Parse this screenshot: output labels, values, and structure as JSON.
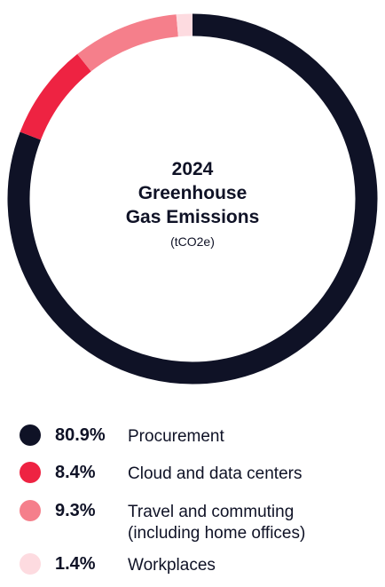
{
  "chart_data": {
    "type": "pie",
    "donut": true,
    "title": [
      "2024",
      "Greenhouse",
      "Gas Emissions"
    ],
    "unit": "(tCO2e)",
    "slices": [
      {
        "label": "Procurement",
        "value": 80.9,
        "value_label": "80.9%",
        "color": "#0f1226"
      },
      {
        "label": "Cloud and data centers",
        "value": 8.4,
        "value_label": "8.4%",
        "color": "#ee2342"
      },
      {
        "label": "Travel and commuting\n(including home offices)",
        "label_lines": [
          "Travel and commuting",
          "(including home offices)"
        ],
        "value": 9.3,
        "value_label": "9.3%",
        "color": "#f57f8b"
      },
      {
        "label": "Workplaces",
        "value": 1.4,
        "value_label": "1.4%",
        "color": "#fddbe0"
      }
    ],
    "legend_position": "bottom"
  }
}
